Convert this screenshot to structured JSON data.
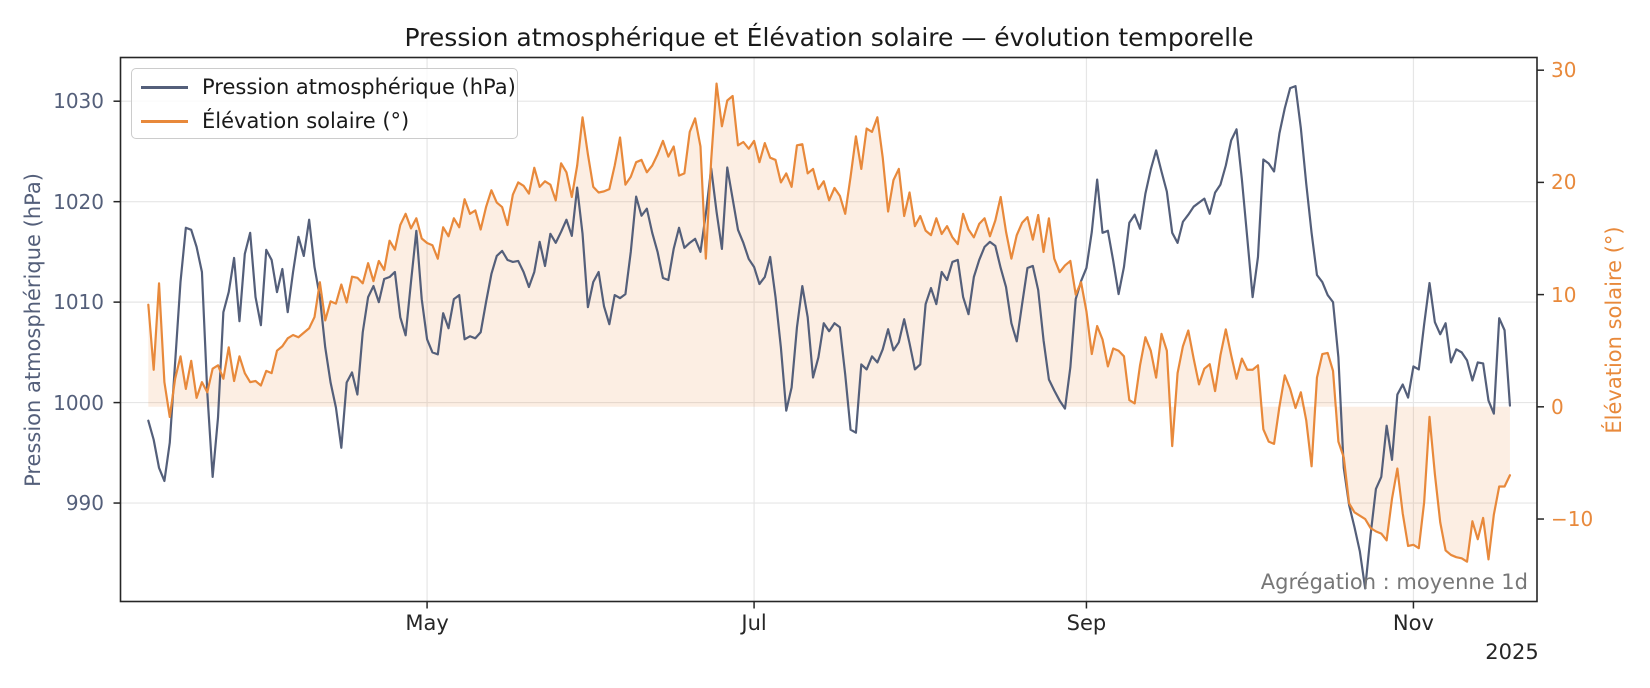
{
  "title": "Pression atmosphérique et Élévation solaire — évolution temporelle",
  "annotation": "Agrégation : moyenne 1d",
  "colors": {
    "pressure": "#545F7A",
    "solar": "#E8893B",
    "solar_fill": "rgba(232,137,59,0.14)",
    "grid": "#E6E6E6",
    "spine": "#262626",
    "x_tick_label": "#262626",
    "annotation": "#777777",
    "legend_border": "#CCCCCC",
    "legend_text": "#1A1A1A",
    "title_text": "#1A1A1A"
  },
  "axes": {
    "left": {
      "label": "Pression atmosphérique (hPa)",
      "ticks": [
        990,
        1000,
        1010,
        1020,
        1030
      ],
      "range": [
        980.2,
        1034.35
      ]
    },
    "right": {
      "label": "Élévation solaire (°)",
      "ticks": [
        -10,
        0,
        10,
        20,
        30
      ],
      "range": [
        -17.35,
        31.13
      ]
    },
    "x": {
      "tick_labels": [
        "May",
        "Jul",
        "Sep",
        "Nov"
      ],
      "tick_days": [
        52,
        113,
        175,
        236
      ],
      "year_label": "2025",
      "range_days": [
        -5.19,
        259.05
      ]
    }
  },
  "legend": {
    "items": [
      {
        "label": "Pression atmosphérique (hPa)",
        "color": "#545F7A"
      },
      {
        "label": "Élévation solaire (°)",
        "color": "#E8893B"
      }
    ]
  },
  "chart_data": {
    "type": "line",
    "title": "Pression atmosphérique et Élévation solaire — évolution temporelle",
    "x_start": "2025-03-10",
    "x_step": "1 day",
    "n_points": 255,
    "x_tick_labels": [
      "May",
      "Jul",
      "Sep",
      "Nov"
    ],
    "ylabel_left": "Pression atmosphérique (hPa)",
    "ylabel_right": "Élévation solaire (°)",
    "ylim_left": [
      980.2,
      1034.35
    ],
    "ylim_right": [
      -17.35,
      31.13
    ],
    "grid": true,
    "legend_position": "upper left",
    "series": [
      {
        "name": "Pression atmosphérique (hPa)",
        "axis": "left",
        "color": "#545F7A",
        "values": [
          998.2,
          996.3,
          993.5,
          992.2,
          996.0,
          1004.0,
          1012.0,
          1017.4,
          1017.2,
          1015.5,
          1013.0,
          1001.0,
          992.6,
          998.5,
          1009.0,
          1011.0,
          1014.4,
          1008.1,
          1014.8,
          1016.9,
          1010.5,
          1007.7,
          1015.2,
          1014.2,
          1011.0,
          1013.3,
          1009.0,
          1013.0,
          1016.5,
          1014.6,
          1018.2,
          1013.5,
          1010.5,
          1005.5,
          1002.0,
          999.5,
          995.5,
          1002.0,
          1003.0,
          1000.8,
          1007.0,
          1010.5,
          1011.6,
          1010.0,
          1012.3,
          1012.5,
          1013.0,
          1008.5,
          1006.7,
          1012.0,
          1017.1,
          1010.3,
          1006.3,
          1005.0,
          1004.8,
          1008.9,
          1007.4,
          1010.3,
          1010.7,
          1006.3,
          1006.6,
          1006.4,
          1007.0,
          1010.0,
          1012.8,
          1014.6,
          1015.1,
          1014.2,
          1014.0,
          1014.1,
          1013.0,
          1011.5,
          1013.0,
          1016.0,
          1013.6,
          1016.8,
          1015.9,
          1017.0,
          1018.2,
          1016.6,
          1021.4,
          1016.8,
          1009.5,
          1012.0,
          1013.0,
          1009.6,
          1007.8,
          1010.7,
          1010.4,
          1010.8,
          1015.0,
          1020.5,
          1018.6,
          1019.3,
          1016.9,
          1015.0,
          1012.4,
          1012.2,
          1015.3,
          1017.4,
          1015.4,
          1015.9,
          1016.3,
          1015.0,
          1018.8,
          1023.3,
          1019.0,
          1015.3,
          1023.4,
          1020.3,
          1017.2,
          1015.9,
          1014.3,
          1013.5,
          1011.8,
          1012.5,
          1014.5,
          1010.5,
          1005.5,
          999.2,
          1001.5,
          1007.5,
          1011.6,
          1008.5,
          1002.5,
          1004.5,
          1007.9,
          1007.1,
          1007.9,
          1007.5,
          1002.8,
          997.3,
          997.0,
          1003.8,
          1003.3,
          1004.6,
          1004.0,
          1005.3,
          1007.3,
          1005.2,
          1006.0,
          1008.3,
          1005.9,
          1003.3,
          1003.8,
          1009.8,
          1011.4,
          1009.8,
          1013.0,
          1012.2,
          1014.0,
          1014.2,
          1010.5,
          1008.8,
          1012.5,
          1014.2,
          1015.5,
          1016.0,
          1015.6,
          1013.4,
          1011.5,
          1007.9,
          1006.1,
          1009.8,
          1013.4,
          1013.6,
          1011.2,
          1006.2,
          1002.3,
          1001.2,
          1000.2,
          999.4,
          1003.5,
          1010.3,
          1012.1,
          1013.4,
          1017.0,
          1022.2,
          1016.9,
          1017.1,
          1014.1,
          1010.8,
          1013.5,
          1017.9,
          1018.7,
          1017.3,
          1020.8,
          1023.2,
          1025.1,
          1023.0,
          1021.0,
          1016.9,
          1015.9,
          1018.0,
          1018.7,
          1019.5,
          1019.9,
          1020.3,
          1018.8,
          1020.9,
          1021.7,
          1023.6,
          1026.1,
          1027.2,
          1022.2,
          1016.4,
          1010.5,
          1014.5,
          1024.2,
          1023.8,
          1023.0,
          1026.8,
          1029.3,
          1031.3,
          1031.5,
          1027.3,
          1021.8,
          1016.9,
          1012.7,
          1012.0,
          1010.7,
          1010.0,
          1004.5,
          993.5,
          989.8,
          987.6,
          985.2,
          981.5,
          986.8,
          991.4,
          992.6,
          997.7,
          994.3,
          1000.8,
          1001.8,
          1000.5,
          1003.6,
          1003.3,
          1007.8,
          1011.9,
          1008.0,
          1006.8,
          1007.9,
          1004.0,
          1005.3,
          1005.0,
          1004.2,
          1002.2,
          1004.0,
          1003.9,
          1000.2,
          998.9,
          1008.4,
          1007.2,
          999.7
        ]
      },
      {
        "name": "Élévation solaire (°)",
        "axis": "right",
        "color": "#E8893B",
        "fill_to_zero": true,
        "values": [
          9.1,
          3.3,
          11.0,
          2.2,
          -0.9,
          2.5,
          4.5,
          1.6,
          4.1,
          0.8,
          2.2,
          1.3,
          3.4,
          3.7,
          2.5,
          5.3,
          2.3,
          4.5,
          3.0,
          2.2,
          2.3,
          1.9,
          3.2,
          3.0,
          5.0,
          5.4,
          6.1,
          6.4,
          6.2,
          6.6,
          7.0,
          8.0,
          11.1,
          7.7,
          9.4,
          9.2,
          10.9,
          9.3,
          11.6,
          11.5,
          11.0,
          12.8,
          11.2,
          13.0,
          12.2,
          14.8,
          14.0,
          16.2,
          17.2,
          15.9,
          16.8,
          15.0,
          14.6,
          14.4,
          13.2,
          16.0,
          15.2,
          16.8,
          16.0,
          18.5,
          17.2,
          17.5,
          15.8,
          17.8,
          19.3,
          18.2,
          17.8,
          16.2,
          18.9,
          20.0,
          19.7,
          19.0,
          21.3,
          19.6,
          20.1,
          19.8,
          18.4,
          21.7,
          20.9,
          18.7,
          21.5,
          25.8,
          22.5,
          19.6,
          19.1,
          19.2,
          19.4,
          21.5,
          24.0,
          19.8,
          20.5,
          21.8,
          22.0,
          20.9,
          21.5,
          22.5,
          23.7,
          22.3,
          23.2,
          20.6,
          20.8,
          24.5,
          25.7,
          23.2,
          13.2,
          22.0,
          28.8,
          25.0,
          27.3,
          27.7,
          23.3,
          23.6,
          23.0,
          23.7,
          21.8,
          23.5,
          22.2,
          22.0,
          20.0,
          20.8,
          19.6,
          23.3,
          23.4,
          20.8,
          21.2,
          19.4,
          20.1,
          18.4,
          19.5,
          18.8,
          17.2,
          20.5,
          24.1,
          21.2,
          24.8,
          24.5,
          25.8,
          22.2,
          17.4,
          20.2,
          21.2,
          17.0,
          19.1,
          16.1,
          17.0,
          15.7,
          15.3,
          16.8,
          15.4,
          16.1,
          15.1,
          14.5,
          17.2,
          15.8,
          15.1,
          16.3,
          16.8,
          15.2,
          16.6,
          18.7,
          15.6,
          13.2,
          15.3,
          16.4,
          16.9,
          14.9,
          17.1,
          13.8,
          16.8,
          13.2,
          12.0,
          12.6,
          13.0,
          10.0,
          11.1,
          8.5,
          4.7,
          7.2,
          6.0,
          3.6,
          5.2,
          5.0,
          4.5,
          0.6,
          0.3,
          3.7,
          6.2,
          5.0,
          2.6,
          6.5,
          5.0,
          -3.5,
          3.0,
          5.4,
          6.8,
          4.3,
          2.0,
          3.4,
          3.8,
          1.4,
          4.6,
          6.9,
          4.6,
          2.5,
          4.3,
          3.3,
          3.3,
          3.7,
          -2.0,
          -3.1,
          -3.3,
          0.0,
          2.8,
          1.6,
          -0.1,
          1.3,
          -1.2,
          -5.3,
          2.6,
          4.7,
          4.8,
          3.2,
          -3.1,
          -4.5,
          -8.6,
          -9.4,
          -9.7,
          -10.0,
          -10.8,
          -11.1,
          -11.3,
          -11.9,
          -8.2,
          -5.5,
          -9.5,
          -12.4,
          -12.3,
          -12.6,
          -8.5,
          -0.9,
          -6.0,
          -10.3,
          -12.8,
          -13.2,
          -13.4,
          -13.5,
          -13.8,
          -10.2,
          -11.8,
          -9.9,
          -13.6,
          -9.6,
          -7.1,
          -7.1,
          -6.1
        ]
      }
    ]
  }
}
